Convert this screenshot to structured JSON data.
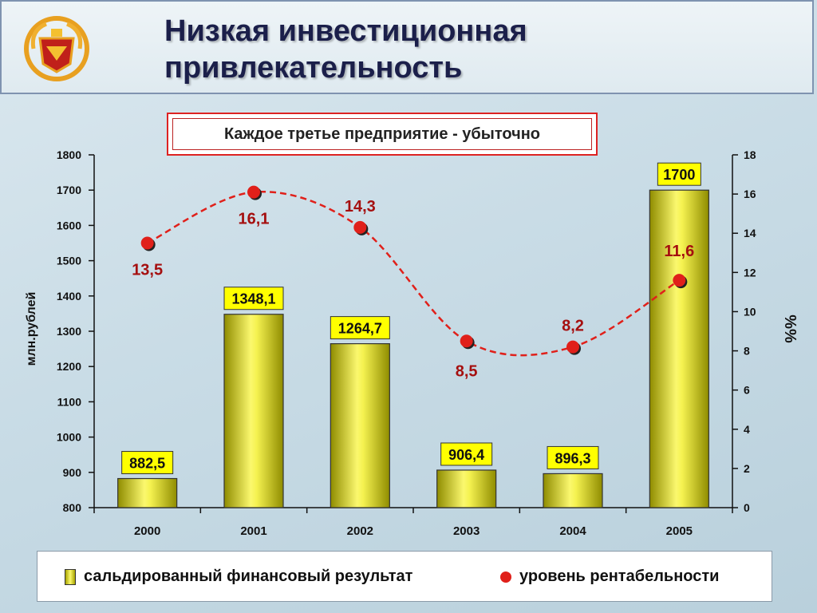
{
  "title": "Низкая инвестиционная привлекательность",
  "subtitle": "Каждое третье предприятие - убыточно",
  "colors": {
    "bar": "#e8e430",
    "point": "#e0201a",
    "label_box": "#ffff00",
    "header_text": "#1b1f4a"
  },
  "chart_data": {
    "type": "bar",
    "categories": [
      "2000",
      "2001",
      "2002",
      "2003",
      "2004",
      "2005"
    ],
    "series": [
      {
        "name": "сальдированный финансовый результат",
        "axis": "left",
        "type": "bar",
        "values": [
          882.5,
          1348.1,
          1264.7,
          906.4,
          896.3,
          1700
        ],
        "labels": [
          "882,5",
          "1348,1",
          "1264,7",
          "906,4",
          "896,3",
          "1700"
        ]
      },
      {
        "name": "уровень рентабельности",
        "axis": "right",
        "type": "scatter",
        "values": [
          13.5,
          16.1,
          14.3,
          8.5,
          8.2,
          11.6
        ],
        "labels": [
          "13,5",
          "16,1",
          "14,3",
          "8,5",
          "8,2",
          "11,6"
        ]
      }
    ],
    "ylabel": "млн.рублей",
    "ylabel_right": "%%",
    "ylim": [
      800,
      1800
    ],
    "yticks": [
      800,
      900,
      1000,
      1100,
      1200,
      1300,
      1400,
      1500,
      1600,
      1700,
      1800
    ],
    "ylim_right": [
      0,
      18
    ],
    "yticks_right": [
      0,
      2,
      4,
      6,
      8,
      10,
      12,
      14,
      16,
      18
    ],
    "trend_line": "dashed red smooth curve through the rentability points",
    "legend_position": "bottom"
  },
  "legend": {
    "bar_label": "сальдированный финансовый результат",
    "point_label": "уровень рентабельности"
  }
}
